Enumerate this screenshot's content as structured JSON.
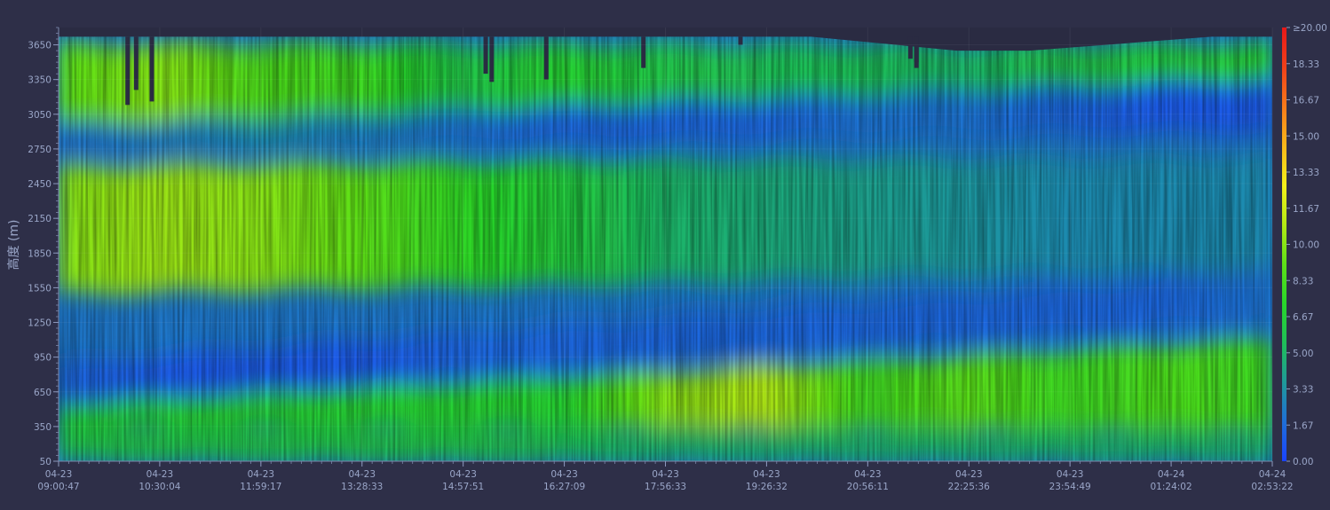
{
  "chart_data": {
    "type": "heatmap",
    "ylabel": "高度 (m)",
    "ylim": [
      50,
      3800
    ],
    "y_ticks": [
      50,
      350,
      650,
      950,
      1250,
      1550,
      1850,
      2150,
      2450,
      2750,
      3050,
      3350,
      3650
    ],
    "x_ticks": [
      {
        "date": "04-23",
        "time": "09:00:47"
      },
      {
        "date": "04-23",
        "time": "10:30:04"
      },
      {
        "date": "04-23",
        "time": "11:59:17"
      },
      {
        "date": "04-23",
        "time": "13:28:33"
      },
      {
        "date": "04-23",
        "time": "14:57:51"
      },
      {
        "date": "04-23",
        "time": "16:27:09"
      },
      {
        "date": "04-23",
        "time": "17:56:33"
      },
      {
        "date": "04-23",
        "time": "19:26:32"
      },
      {
        "date": "04-23",
        "time": "20:56:11"
      },
      {
        "date": "04-23",
        "time": "22:25:36"
      },
      {
        "date": "04-23",
        "time": "23:54:49"
      },
      {
        "date": "04-24",
        "time": "01:24:02"
      },
      {
        "date": "04-24",
        "time": "02:53:22"
      }
    ],
    "colorbar": {
      "range": [
        0,
        20
      ],
      "labels": [
        "0.00",
        "1.67",
        "3.33",
        "5.00",
        "6.67",
        "8.33",
        "10.00",
        "11.67",
        "13.33",
        "15.00",
        "16.67",
        "18.33",
        "≥20.00"
      ],
      "colors": [
        "#1a43ff",
        "#1f6fd8",
        "#1f9a9a",
        "#1fbf58",
        "#28d62a",
        "#5ee018",
        "#b2ea14",
        "#f4f01a",
        "#f8b81a",
        "#f87a1a",
        "#f0401a",
        "#e81818"
      ]
    },
    "layers": [
      {
        "name": "band_top",
        "start": [
          2950,
          3650
        ],
        "end": [
          2950,
          3650
        ],
        "intensity": [
          9,
          10,
          8.5,
          8,
          6,
          7,
          6,
          5.5,
          5.5,
          5,
          6,
          6.5,
          7
        ]
      },
      {
        "name": "low_top",
        "start": [
          2700,
          2950
        ],
        "end": [
          2900,
          3350
        ],
        "intensity": [
          2,
          2.5,
          3,
          2.5,
          2,
          1.5,
          1.5,
          1.5,
          2,
          2,
          1.5,
          1,
          1
        ]
      },
      {
        "name": "mid_band",
        "start": [
          1500,
          2600
        ],
        "end": [
          1700,
          2700
        ],
        "intensity": [
          10,
          10.5,
          10,
          9,
          7.5,
          6.5,
          5,
          4.5,
          4,
          3.5,
          3,
          3,
          3
        ]
      },
      {
        "name": "low_mid",
        "start": [
          550,
          900
        ],
        "end": [
          1250,
          1700
        ],
        "intensity": [
          1.5,
          1,
          1,
          1,
          1.5,
          1.5,
          1.5,
          1.5,
          1.5,
          1.5,
          1.5,
          1.5,
          2
        ]
      },
      {
        "name": "lower_band",
        "start": [
          350,
          550
        ],
        "end": [
          300,
          1100
        ],
        "intensity": [
          7,
          7,
          7,
          7,
          7,
          7,
          10,
          11,
          8,
          9,
          8,
          8.5,
          8
        ]
      },
      {
        "name": "surface",
        "start": [
          50,
          350
        ],
        "end": [
          50,
          300
        ],
        "intensity": [
          6,
          6,
          6,
          6,
          6,
          5.5,
          5,
          5,
          5,
          5,
          5,
          5,
          5
        ]
      }
    ],
    "data_ceiling": {
      "comment": "top of valid data (m) over time fraction",
      "points": [
        [
          0,
          3720
        ],
        [
          0.53,
          3720
        ],
        [
          0.62,
          3720
        ],
        [
          0.74,
          3600
        ],
        [
          0.8,
          3600
        ],
        [
          0.95,
          3720
        ],
        [
          1,
          3720
        ]
      ]
    }
  }
}
